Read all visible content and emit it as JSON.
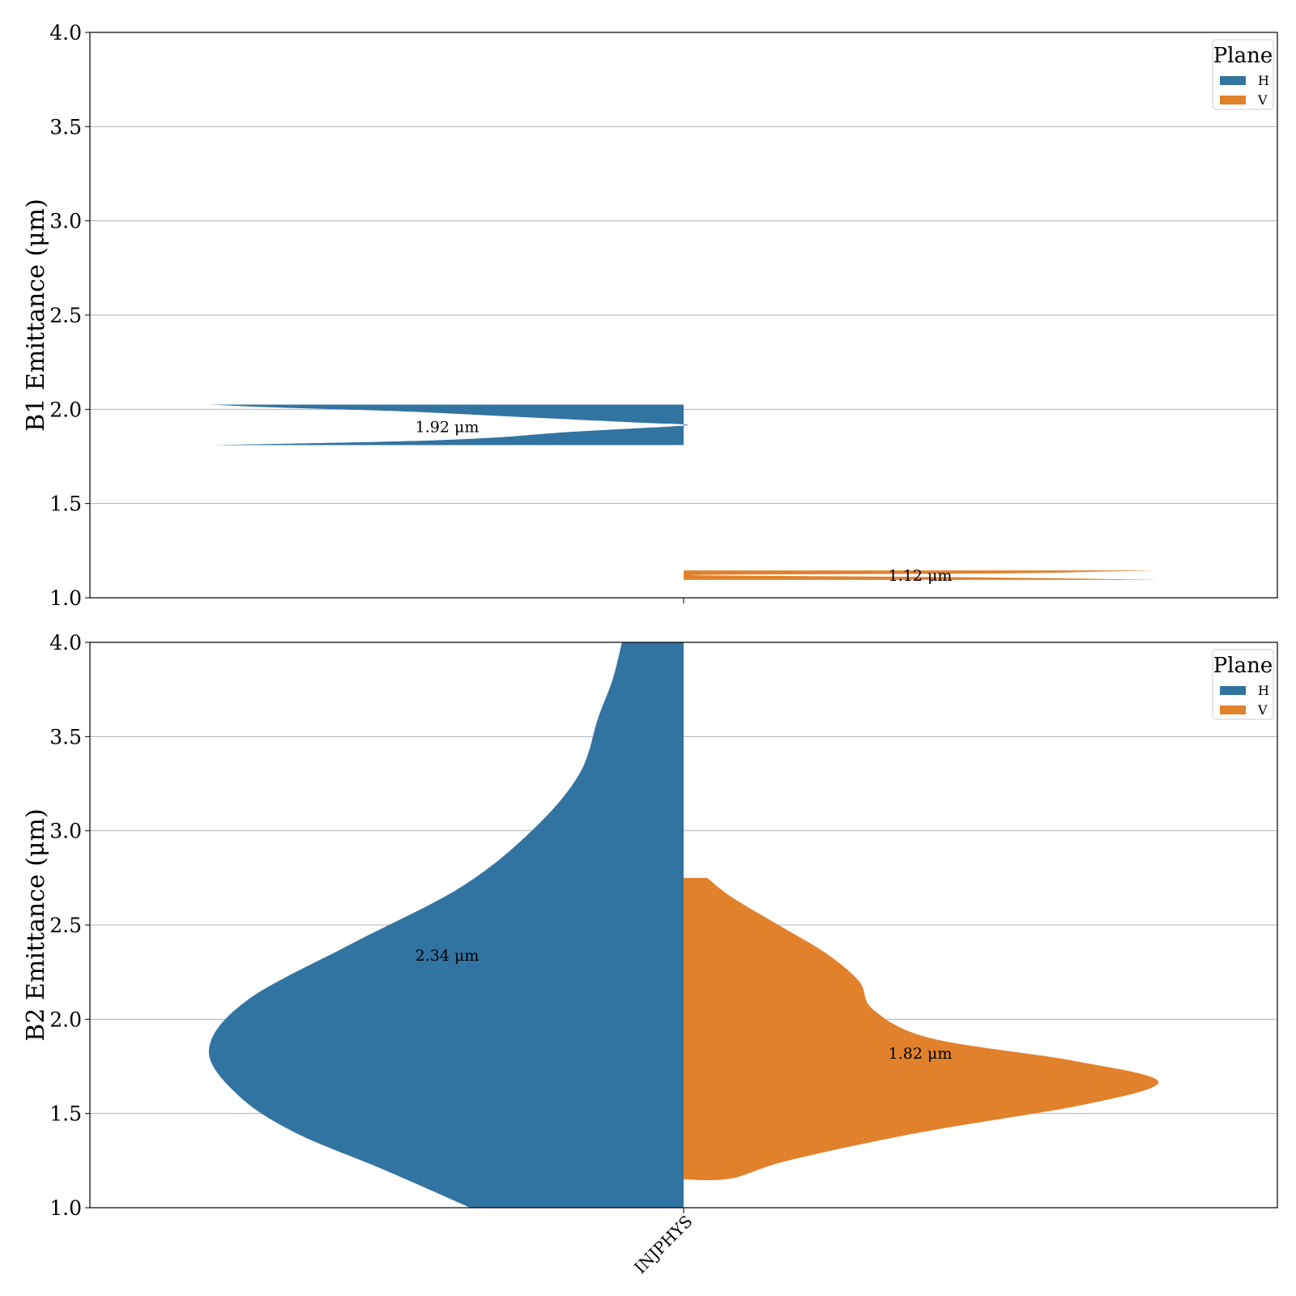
{
  "chart_data": [
    {
      "type": "violin",
      "ylabel": "B1 Emittance (μm)",
      "ylim": [
        1.0,
        4.0
      ],
      "yticks": [
        "1.0",
        "1.5",
        "2.0",
        "2.5",
        "3.0",
        "3.5",
        "4.0"
      ],
      "categories": [
        "INJPHYS"
      ],
      "grid": "horizontal",
      "legend": {
        "title": "Plane",
        "position": "top-right",
        "entries": [
          "H",
          "V"
        ]
      },
      "series": [
        {
          "name": "H",
          "side": "left",
          "color": "#3274a1",
          "median": 1.92,
          "annotation": "1.92 μm",
          "annotation_y": 1.91,
          "profile": [
            [
              1.81,
              1.0
            ],
            [
              1.83,
              0.6
            ],
            [
              1.85,
              0.4
            ],
            [
              1.88,
              0.24
            ],
            [
              1.91,
              0.02
            ],
            [
              1.92,
              0.0
            ],
            [
              1.93,
              0.1
            ],
            [
              1.96,
              0.35
            ],
            [
              1.99,
              0.6
            ],
            [
              2.01,
              0.86
            ],
            [
              2.025,
              1.0
            ]
          ]
        },
        {
          "name": "V",
          "side": "right",
          "color": "#e1812c",
          "median": 1.12,
          "annotation": "1.12 μm",
          "annotation_y": 1.12,
          "profile": [
            [
              1.095,
              1.0
            ],
            [
              1.1,
              0.88
            ],
            [
              1.11,
              0.55
            ],
            [
              1.12,
              0.02
            ],
            [
              1.125,
              0.3
            ],
            [
              1.13,
              0.7
            ],
            [
              1.14,
              0.9
            ],
            [
              1.145,
              1.0
            ]
          ]
        }
      ]
    },
    {
      "type": "violin",
      "ylabel": "B2 Emittance (μm)",
      "ylim": [
        1.0,
        4.0
      ],
      "yticks": [
        "1.0",
        "1.5",
        "2.0",
        "2.5",
        "3.0",
        "3.5",
        "4.0"
      ],
      "categories": [
        "INJPHYS"
      ],
      "grid": "horizontal",
      "legend": {
        "title": "Plane",
        "position": "top-right",
        "entries": [
          "H",
          "V"
        ]
      },
      "series": [
        {
          "name": "H",
          "side": "left",
          "color": "#3274a1",
          "median": 2.34,
          "annotation": "2.34 μm",
          "annotation_y": 2.34,
          "profile": [
            [
              1.0,
              0.45
            ],
            [
              1.2,
              0.63
            ],
            [
              1.4,
              0.82
            ],
            [
              1.6,
              0.94
            ],
            [
              1.84,
              1.0
            ],
            [
              2.1,
              0.92
            ],
            [
              2.4,
              0.7
            ],
            [
              2.7,
              0.47
            ],
            [
              3.0,
              0.32
            ],
            [
              3.3,
              0.22
            ],
            [
              3.6,
              0.18
            ],
            [
              3.8,
              0.15
            ],
            [
              4.0,
              0.13
            ]
          ]
        },
        {
          "name": "V",
          "side": "right",
          "color": "#e1812c",
          "median": 1.82,
          "annotation": "1.82 μm",
          "annotation_y": 1.82,
          "profile": [
            [
              1.15,
              0.0
            ],
            [
              1.155,
              0.1
            ],
            [
              1.25,
              0.22
            ],
            [
              1.4,
              0.5
            ],
            [
              1.55,
              0.85
            ],
            [
              1.67,
              1.0
            ],
            [
              1.78,
              0.82
            ],
            [
              1.9,
              0.52
            ],
            [
              2.05,
              0.4
            ],
            [
              2.2,
              0.37
            ],
            [
              2.35,
              0.3
            ],
            [
              2.5,
              0.2
            ],
            [
              2.65,
              0.1
            ],
            [
              2.75,
              0.05
            ]
          ]
        }
      ]
    }
  ]
}
